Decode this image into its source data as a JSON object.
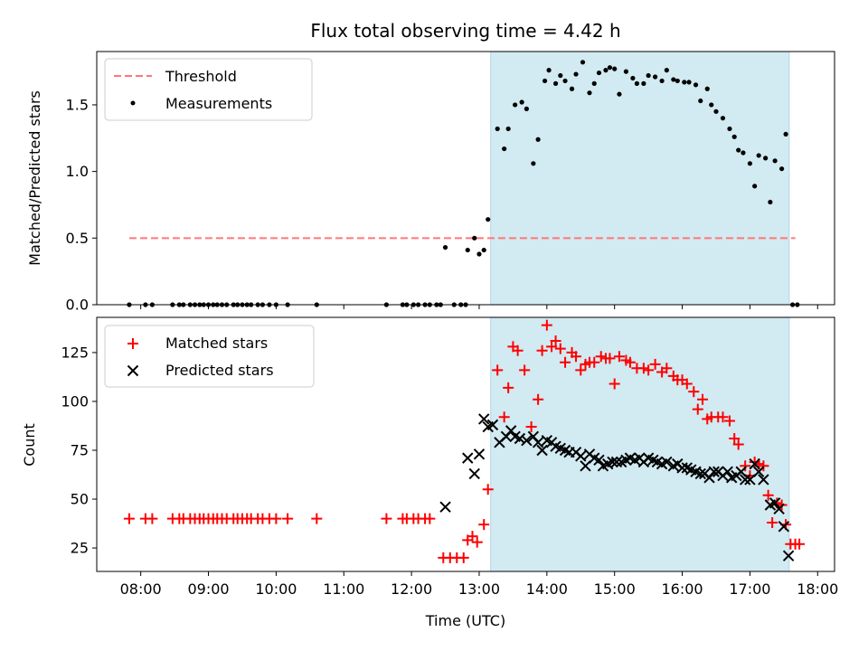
{
  "chart_data": {
    "type": "scatter",
    "title": "Flux total observing time = 4.42 h",
    "xlabel": "Time (UTC)",
    "x_tick_labels": [
      "08:00",
      "09:00",
      "10:00",
      "11:00",
      "12:00",
      "13:00",
      "14:00",
      "15:00",
      "16:00",
      "17:00",
      "18:00"
    ],
    "x_tick_hours": [
      8,
      9,
      10,
      11,
      12,
      13,
      14,
      15,
      16,
      17,
      18
    ],
    "xlim_hours": [
      7.35,
      18.25
    ],
    "observing_window_hours": [
      13.17,
      17.58
    ],
    "colors": {
      "threshold": "#ff7777",
      "measurement": "#000000",
      "matched": "#ff0000",
      "predicted": "#000000",
      "window": "#add8e6"
    },
    "panels": {
      "top": {
        "ylabel": "Matched/Predicted stars",
        "ylim": [
          0,
          1.9
        ],
        "y_ticks": [
          0,
          0.5,
          1.0,
          1.5
        ],
        "y_tick_labels": [
          "0.0",
          "0.5",
          "1.0",
          "1.5"
        ],
        "threshold": {
          "name": "Threshold",
          "value": 0.5,
          "x_range": [
            7.83,
            17.67
          ]
        },
        "measurements": {
          "name": "Measurements",
          "points": [
            [
              7.83,
              0
            ],
            [
              8.07,
              0
            ],
            [
              8.17,
              0
            ],
            [
              8.47,
              0
            ],
            [
              8.57,
              0
            ],
            [
              8.63,
              0
            ],
            [
              8.73,
              0
            ],
            [
              8.8,
              0
            ],
            [
              8.87,
              0
            ],
            [
              8.93,
              0
            ],
            [
              9.0,
              0
            ],
            [
              9.07,
              0
            ],
            [
              9.13,
              0
            ],
            [
              9.2,
              0
            ],
            [
              9.27,
              0
            ],
            [
              9.37,
              0
            ],
            [
              9.43,
              0
            ],
            [
              9.5,
              0
            ],
            [
              9.57,
              0
            ],
            [
              9.63,
              0
            ],
            [
              9.73,
              0
            ],
            [
              9.8,
              0
            ],
            [
              9.9,
              0
            ],
            [
              10.0,
              0
            ],
            [
              10.17,
              0
            ],
            [
              10.6,
              0
            ],
            [
              11.63,
              0
            ],
            [
              11.87,
              0
            ],
            [
              11.93,
              0
            ],
            [
              12.03,
              0
            ],
            [
              12.1,
              0
            ],
            [
              12.2,
              0
            ],
            [
              12.27,
              0
            ],
            [
              12.37,
              0
            ],
            [
              12.43,
              0
            ],
            [
              12.63,
              0
            ],
            [
              12.73,
              0
            ],
            [
              12.8,
              0
            ],
            [
              12.5,
              0.43
            ],
            [
              12.83,
              0.41
            ],
            [
              12.93,
              0.5
            ],
            [
              13.0,
              0.38
            ],
            [
              13.07,
              0.41
            ],
            [
              13.13,
              0.64
            ],
            [
              13.27,
              1.32
            ],
            [
              13.37,
              1.17
            ],
            [
              13.43,
              1.32
            ],
            [
              13.53,
              1.5
            ],
            [
              13.63,
              1.52
            ],
            [
              13.7,
              1.47
            ],
            [
              13.8,
              1.06
            ],
            [
              13.87,
              1.24
            ],
            [
              13.97,
              1.68
            ],
            [
              14.03,
              1.76
            ],
            [
              14.13,
              1.66
            ],
            [
              14.2,
              1.72
            ],
            [
              14.27,
              1.68
            ],
            [
              14.37,
              1.62
            ],
            [
              14.43,
              1.73
            ],
            [
              14.53,
              1.82
            ],
            [
              14.63,
              1.59
            ],
            [
              14.7,
              1.66
            ],
            [
              14.77,
              1.74
            ],
            [
              14.87,
              1.76
            ],
            [
              14.93,
              1.78
            ],
            [
              15.0,
              1.77
            ],
            [
              15.07,
              1.58
            ],
            [
              15.17,
              1.75
            ],
            [
              15.27,
              1.7
            ],
            [
              15.33,
              1.66
            ],
            [
              15.43,
              1.66
            ],
            [
              15.5,
              1.72
            ],
            [
              15.6,
              1.71
            ],
            [
              15.7,
              1.68
            ],
            [
              15.77,
              1.76
            ],
            [
              15.87,
              1.69
            ],
            [
              15.93,
              1.68
            ],
            [
              16.03,
              1.67
            ],
            [
              16.1,
              1.67
            ],
            [
              16.2,
              1.65
            ],
            [
              16.27,
              1.53
            ],
            [
              16.37,
              1.62
            ],
            [
              16.43,
              1.5
            ],
            [
              16.5,
              1.45
            ],
            [
              16.6,
              1.4
            ],
            [
              16.7,
              1.32
            ],
            [
              16.77,
              1.26
            ],
            [
              16.83,
              1.16
            ],
            [
              16.9,
              1.14
            ],
            [
              17.0,
              1.06
            ],
            [
              17.07,
              0.89
            ],
            [
              17.13,
              1.12
            ],
            [
              17.23,
              1.1
            ],
            [
              17.3,
              0.77
            ],
            [
              17.37,
              1.08
            ],
            [
              17.47,
              1.02
            ],
            [
              17.53,
              1.28
            ],
            [
              17.63,
              0
            ],
            [
              17.7,
              0
            ]
          ]
        }
      },
      "bottom": {
        "ylabel": "Count",
        "ylim": [
          13,
          143
        ],
        "y_ticks": [
          25,
          50,
          75,
          100,
          125
        ],
        "y_tick_labels": [
          "25",
          "50",
          "75",
          "100",
          "125"
        ],
        "matched": {
          "name": "Matched stars",
          "points": [
            [
              7.83,
              40
            ],
            [
              8.07,
              40
            ],
            [
              8.17,
              40
            ],
            [
              8.47,
              40
            ],
            [
              8.57,
              40
            ],
            [
              8.63,
              40
            ],
            [
              8.73,
              40
            ],
            [
              8.8,
              40
            ],
            [
              8.87,
              40
            ],
            [
              8.93,
              40
            ],
            [
              9.0,
              40
            ],
            [
              9.07,
              40
            ],
            [
              9.13,
              40
            ],
            [
              9.2,
              40
            ],
            [
              9.27,
              40
            ],
            [
              9.37,
              40
            ],
            [
              9.43,
              40
            ],
            [
              9.5,
              40
            ],
            [
              9.57,
              40
            ],
            [
              9.63,
              40
            ],
            [
              9.73,
              40
            ],
            [
              9.8,
              40
            ],
            [
              9.9,
              40
            ],
            [
              10.0,
              40
            ],
            [
              10.17,
              40
            ],
            [
              10.6,
              40
            ],
            [
              11.63,
              40
            ],
            [
              11.87,
              40
            ],
            [
              11.93,
              40
            ],
            [
              12.03,
              40
            ],
            [
              12.1,
              40
            ],
            [
              12.2,
              40
            ],
            [
              12.27,
              40
            ],
            [
              12.47,
              20
            ],
            [
              12.57,
              20
            ],
            [
              12.67,
              20
            ],
            [
              12.77,
              20
            ],
            [
              12.83,
              29
            ],
            [
              12.9,
              31
            ],
            [
              12.97,
              28
            ],
            [
              13.07,
              37
            ],
            [
              13.13,
              55
            ],
            [
              13.27,
              116
            ],
            [
              13.37,
              92
            ],
            [
              13.43,
              107
            ],
            [
              13.5,
              128
            ],
            [
              13.57,
              126
            ],
            [
              13.67,
              116
            ],
            [
              13.77,
              87
            ],
            [
              13.87,
              101
            ],
            [
              13.93,
              126
            ],
            [
              14.0,
              139
            ],
            [
              14.07,
              128
            ],
            [
              14.13,
              131
            ],
            [
              14.2,
              127
            ],
            [
              14.27,
              120
            ],
            [
              14.37,
              125
            ],
            [
              14.43,
              123
            ],
            [
              14.5,
              116
            ],
            [
              14.57,
              119
            ],
            [
              14.63,
              120
            ],
            [
              14.7,
              120
            ],
            [
              14.8,
              123
            ],
            [
              14.87,
              122
            ],
            [
              14.93,
              122
            ],
            [
              15.0,
              109
            ],
            [
              15.07,
              123
            ],
            [
              15.17,
              121
            ],
            [
              15.23,
              120
            ],
            [
              15.33,
              117
            ],
            [
              15.43,
              117
            ],
            [
              15.5,
              116
            ],
            [
              15.6,
              119
            ],
            [
              15.7,
              115
            ],
            [
              15.77,
              117
            ],
            [
              15.87,
              113
            ],
            [
              15.93,
              111
            ],
            [
              16.0,
              111
            ],
            [
              16.07,
              109
            ],
            [
              16.17,
              105
            ],
            [
              16.23,
              96
            ],
            [
              16.3,
              101
            ],
            [
              16.37,
              91
            ],
            [
              16.43,
              92
            ],
            [
              16.53,
              92
            ],
            [
              16.6,
              92
            ],
            [
              16.7,
              90
            ],
            [
              16.77,
              81
            ],
            [
              16.83,
              78
            ],
            [
              16.93,
              67
            ],
            [
              17.0,
              62
            ],
            [
              17.07,
              69
            ],
            [
              17.13,
              68
            ],
            [
              17.2,
              67
            ],
            [
              17.27,
              52
            ],
            [
              17.33,
              38
            ],
            [
              17.4,
              48
            ],
            [
              17.47,
              47
            ],
            [
              17.53,
              37
            ],
            [
              17.6,
              27
            ],
            [
              17.67,
              27
            ],
            [
              17.73,
              27
            ]
          ]
        },
        "predicted": {
          "name": "Predicted stars",
          "points": [
            [
              12.5,
              46
            ],
            [
              12.83,
              71
            ],
            [
              12.93,
              63
            ],
            [
              13.0,
              73
            ],
            [
              13.07,
              91
            ],
            [
              13.13,
              87
            ],
            [
              13.2,
              88
            ],
            [
              13.3,
              79
            ],
            [
              13.4,
              82
            ],
            [
              13.47,
              85
            ],
            [
              13.53,
              82
            ],
            [
              13.6,
              81
            ],
            [
              13.7,
              80
            ],
            [
              13.8,
              82
            ],
            [
              13.87,
              79
            ],
            [
              13.93,
              75
            ],
            [
              14.0,
              80
            ],
            [
              14.07,
              79
            ],
            [
              14.13,
              77
            ],
            [
              14.2,
              76
            ],
            [
              14.27,
              75
            ],
            [
              14.33,
              74
            ],
            [
              14.43,
              74
            ],
            [
              14.5,
              72
            ],
            [
              14.57,
              67
            ],
            [
              14.63,
              73
            ],
            [
              14.7,
              71
            ],
            [
              14.77,
              70
            ],
            [
              14.83,
              67
            ],
            [
              14.9,
              68
            ],
            [
              14.97,
              69
            ],
            [
              15.03,
              69
            ],
            [
              15.1,
              69
            ],
            [
              15.17,
              70
            ],
            [
              15.23,
              71
            ],
            [
              15.3,
              70
            ],
            [
              15.37,
              71
            ],
            [
              15.43,
              69
            ],
            [
              15.5,
              71
            ],
            [
              15.57,
              70
            ],
            [
              15.63,
              69
            ],
            [
              15.7,
              68
            ],
            [
              15.77,
              69
            ],
            [
              15.87,
              67
            ],
            [
              15.93,
              68
            ],
            [
              16.0,
              66
            ],
            [
              16.07,
              66
            ],
            [
              16.13,
              65
            ],
            [
              16.2,
              64
            ],
            [
              16.27,
              63
            ],
            [
              16.33,
              63
            ],
            [
              16.4,
              61
            ],
            [
              16.47,
              64
            ],
            [
              16.53,
              64
            ],
            [
              16.6,
              62
            ],
            [
              16.67,
              64
            ],
            [
              16.73,
              61
            ],
            [
              16.8,
              62
            ],
            [
              16.87,
              64
            ],
            [
              16.93,
              60
            ],
            [
              17.0,
              60
            ],
            [
              17.07,
              68
            ],
            [
              17.13,
              64
            ],
            [
              17.2,
              60
            ],
            [
              17.3,
              47
            ],
            [
              17.37,
              48
            ],
            [
              17.43,
              45
            ],
            [
              17.5,
              36
            ],
            [
              17.57,
              21
            ]
          ]
        }
      }
    }
  }
}
